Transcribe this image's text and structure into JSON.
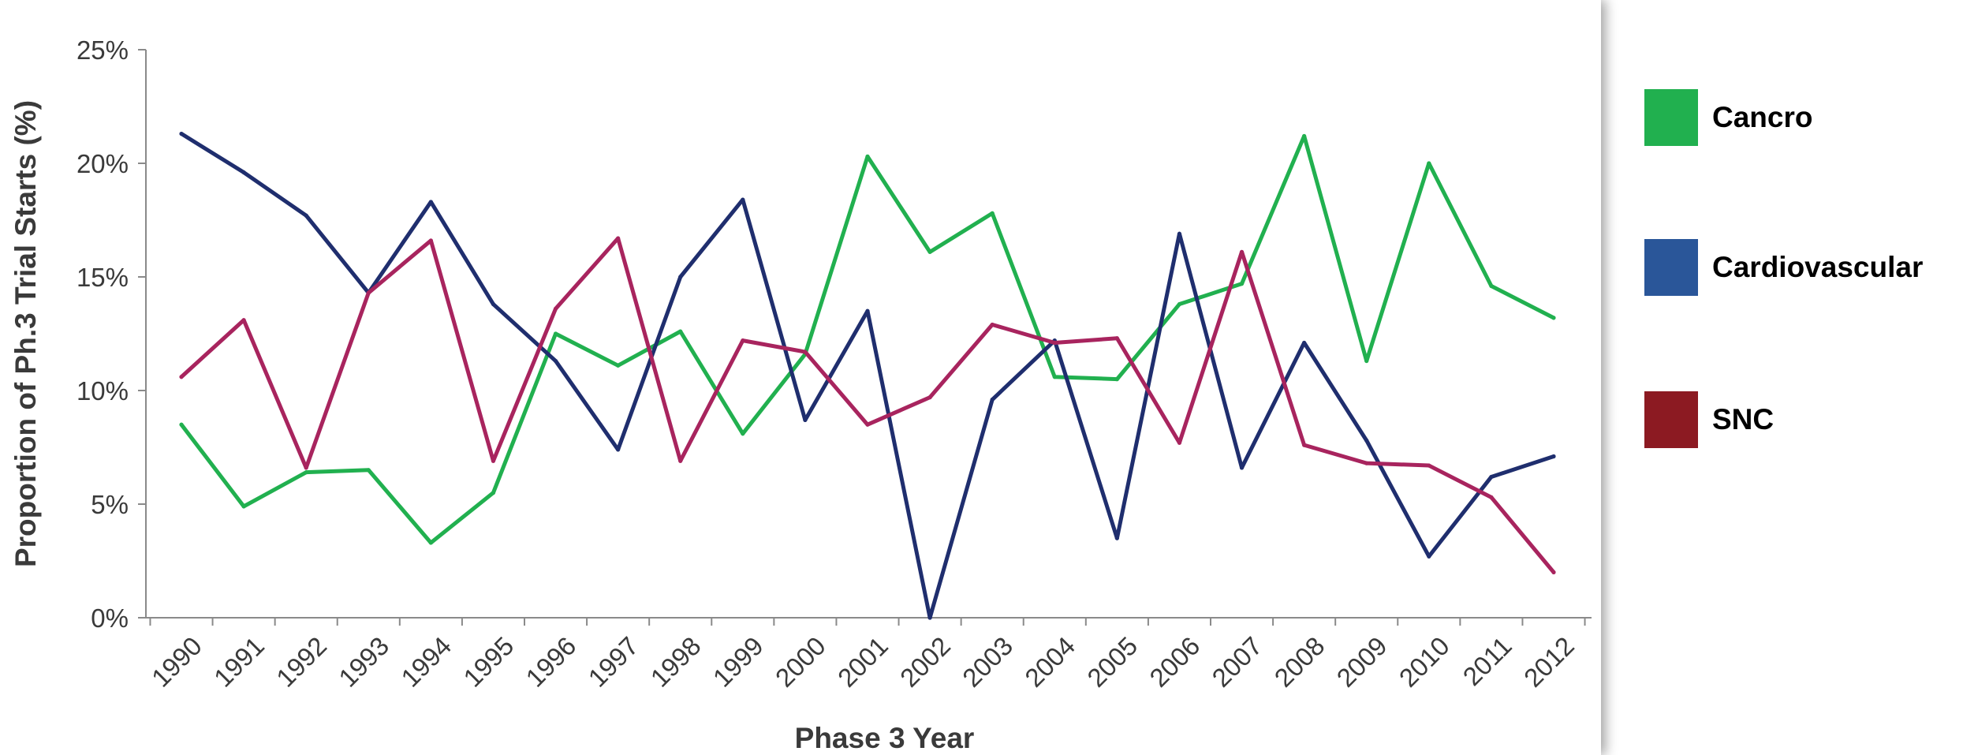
{
  "chart_data": {
    "type": "line",
    "xlabel": "Phase 3 Year",
    "ylabel": "Proportion of Ph.3 Trial Starts (%)",
    "ylim": [
      0,
      25
    ],
    "yticks": [
      "0%",
      "5%",
      "10%",
      "15%",
      "20%",
      "25%"
    ],
    "x": [
      "1990",
      "1991",
      "1992",
      "1993",
      "1994",
      "1995",
      "1996",
      "1997",
      "1998",
      "1999",
      "2000",
      "2001",
      "2002",
      "2003",
      "2004",
      "2005",
      "2006",
      "2007",
      "2008",
      "2009",
      "2010",
      "2011",
      "2012"
    ],
    "series": [
      {
        "name": "Cancro",
        "color": "#21b04f",
        "values": [
          8.5,
          4.9,
          6.4,
          6.5,
          3.3,
          5.5,
          12.5,
          11.1,
          12.6,
          8.1,
          11.6,
          20.3,
          16.1,
          17.8,
          10.6,
          10.5,
          13.8,
          14.7,
          21.2,
          11.3,
          20.0,
          14.6,
          13.2
        ]
      },
      {
        "name": "Cardiovascular",
        "color": "#1f2e6e",
        "values": [
          21.3,
          19.6,
          17.7,
          14.3,
          18.3,
          13.8,
          11.3,
          7.4,
          15.0,
          18.4,
          8.7,
          13.5,
          0.0,
          9.6,
          12.2,
          3.5,
          16.9,
          6.6,
          12.1,
          7.8,
          2.7,
          6.2,
          7.1
        ]
      },
      {
        "name": "SNC",
        "color": "#a8245e",
        "values": [
          10.6,
          13.1,
          6.6,
          14.3,
          16.6,
          6.9,
          13.6,
          16.7,
          6.9,
          12.2,
          11.7,
          8.5,
          9.7,
          12.9,
          12.1,
          12.3,
          7.7,
          16.1,
          7.6,
          6.8,
          6.7,
          5.3,
          2.0
        ]
      }
    ]
  },
  "legend": [
    {
      "label": "Cancro",
      "color": "#21b04f"
    },
    {
      "label": "Cardiovascular",
      "color": "#2a5699"
    },
    {
      "label": "SNC",
      "color": "#8c1a22"
    }
  ]
}
